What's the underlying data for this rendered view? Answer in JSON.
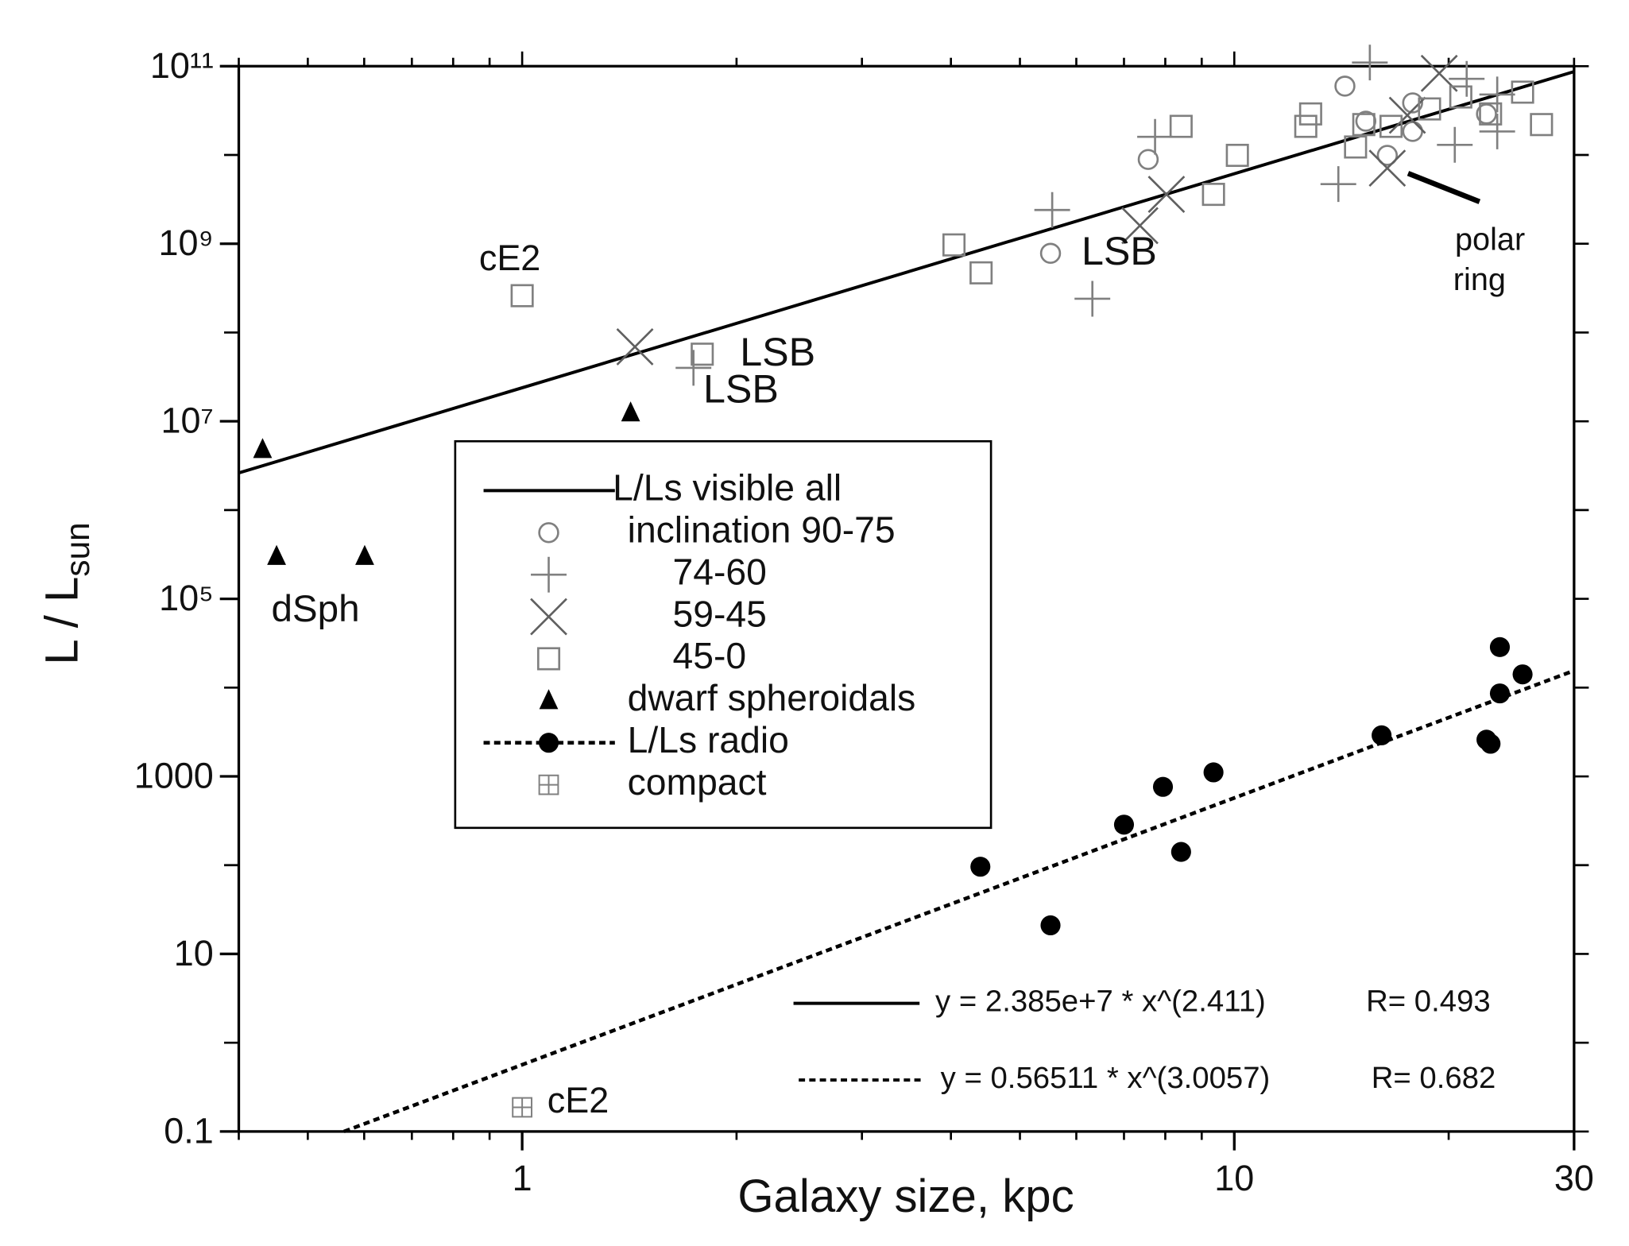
{
  "chart_data": {
    "type": "scatter",
    "x_label": "Galaxy size, kpc",
    "y_label": "L / L",
    "y_label_sub": "sun",
    "xscale": "log",
    "yscale": "log",
    "xlim": [
      0.4,
      30
    ],
    "ylim": [
      0.1,
      100000000000
    ],
    "xticks": [
      1,
      10,
      30
    ],
    "yticks": [
      0.1,
      10,
      1000,
      {
        "value": 100000,
        "label": "10⁵"
      },
      {
        "value": 10000000,
        "label": "10⁷"
      },
      {
        "value": 1000000000,
        "label": "10⁹"
      },
      {
        "value": 100000000000,
        "label": "10¹¹"
      }
    ],
    "series": [
      {
        "name": "L/Ls visible all",
        "marker": "line",
        "color": "#000000",
        "x": [
          0.4,
          30
        ],
        "values": [
          2619000,
          86840000000
        ]
      },
      {
        "name": "inclination 90-75",
        "marker": "circle",
        "color": "#808080",
        "x": [
          14.3,
          7.57,
          5.52,
          17.8,
          17.8,
          16.4,
          22.6,
          15.3
        ],
        "values": [
          59600000000,
          8900000000,
          780000000,
          38600000000,
          18400000000,
          9900000000,
          29000000000,
          24000000000
        ]
      },
      {
        "name": "74-60",
        "marker": "plus",
        "color": "#808080",
        "x": [
          7.74,
          5.55,
          6.32,
          1.74,
          15.5,
          14.0,
          20.4,
          21.2,
          23.4,
          23.4
        ],
        "values": [
          16000000000,
          2400000000,
          240000000,
          40000000,
          110000000000,
          4700000000,
          13000000000,
          72000000000,
          48000000000,
          18400000000
        ]
      },
      {
        "name": "59-45",
        "marker": "cross",
        "color": "#606060",
        "x": [
          1.44,
          8.03,
          7.37,
          16.4,
          17.5,
          19.4
        ],
        "values": [
          69000000,
          3600000000,
          1600000000,
          7100000000,
          28000000000,
          83000000000
        ]
      },
      {
        "name": "45-0",
        "marker": "square",
        "color": "#808080",
        "x": [
          1.0,
          1.79,
          4.04,
          4.41,
          8.42,
          10.1,
          9.35,
          12.6,
          12.8,
          14.8,
          15.2,
          16.6,
          18.8,
          20.8,
          25.4,
          27.0,
          22.9
        ],
        "values": [
          260000000,
          57000000,
          970000000,
          470000000,
          21000000000,
          9900000000,
          3600000000,
          21000000000,
          29000000000,
          12300000000,
          22000000000,
          21000000000,
          33000000000,
          45000000000,
          51000000000,
          22000000000,
          29000000000
        ]
      },
      {
        "name": "dwarf spheroidals",
        "marker": "triangle",
        "color": "#000000",
        "x": [
          0.432,
          0.452,
          0.601,
          1.42
        ],
        "values": [
          4800000,
          300000,
          300000,
          12400000
        ]
      },
      {
        "name": "L/Ls radio",
        "marker": "dot",
        "color": "#000000",
        "x": [
          4.4,
          5.52,
          7.0,
          7.94,
          8.42,
          9.35,
          16.1,
          22.6,
          22.9,
          23.6,
          23.6,
          25.4
        ],
        "values": [
          96,
          21,
          286,
          762,
          141,
          1110,
          2900,
          2590,
          2330,
          8600,
          28600,
          14100
        ]
      },
      {
        "name": "compact",
        "marker": "boxplus",
        "color": "#808080",
        "x": [
          1.0
        ],
        "values": [
          0.187
        ]
      }
    ],
    "radio_fit": {
      "x": [
        0.562,
        30
      ],
      "values": [
        0.1,
        15540
      ]
    },
    "equations": [
      {
        "text": "y = 2.385e+7 * x^(2.411)",
        "r": "R= 0.493",
        "dashed": false
      },
      {
        "text": "y = 0.56511 * x^(3.0057)",
        "r": "R= 0.682",
        "dashed": true
      }
    ],
    "annotations": [
      "cE2",
      "LSB",
      "LSB",
      "LSB",
      "dSph",
      "polar",
      "ring",
      "cE2"
    ]
  }
}
